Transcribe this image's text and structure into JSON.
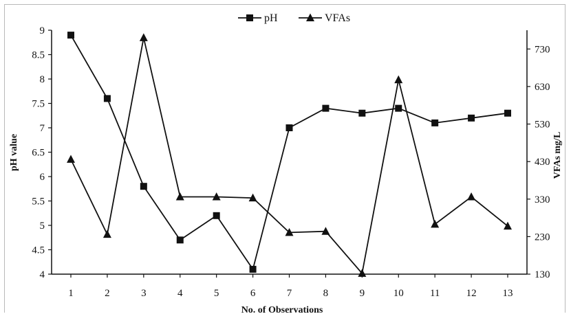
{
  "chart_data": {
    "type": "line",
    "title": "",
    "xlabel": "No. of Observations",
    "ylabel": "pH value",
    "y2label": "VFAs mg/L",
    "categories": [
      "1",
      "2",
      "3",
      "4",
      "5",
      "6",
      "7",
      "8",
      "9",
      "10",
      "11",
      "12",
      "13"
    ],
    "ylim": [
      4,
      9
    ],
    "y2lim": [
      130,
      780
    ],
    "yticks": [
      "4",
      "4.5",
      "5",
      "5.5",
      "6",
      "6.5",
      "7",
      "7.5",
      "8",
      "8.5",
      "9"
    ],
    "y2ticks": [
      "130",
      "230",
      "330",
      "430",
      "530",
      "630",
      "730"
    ],
    "legend_position": "top-center",
    "series": [
      {
        "name": "pH",
        "axis": "left",
        "marker": "square",
        "values": [
          8.9,
          7.6,
          5.8,
          4.7,
          5.2,
          4.1,
          7.0,
          7.4,
          7.3,
          7.4,
          7.1,
          7.2,
          7.3
        ]
      },
      {
        "name": "VFAs",
        "axis": "right",
        "marker": "triangle",
        "values": [
          436,
          236,
          760,
          336,
          336,
          333,
          241,
          244,
          132,
          648,
          263,
          336,
          258
        ]
      }
    ]
  }
}
